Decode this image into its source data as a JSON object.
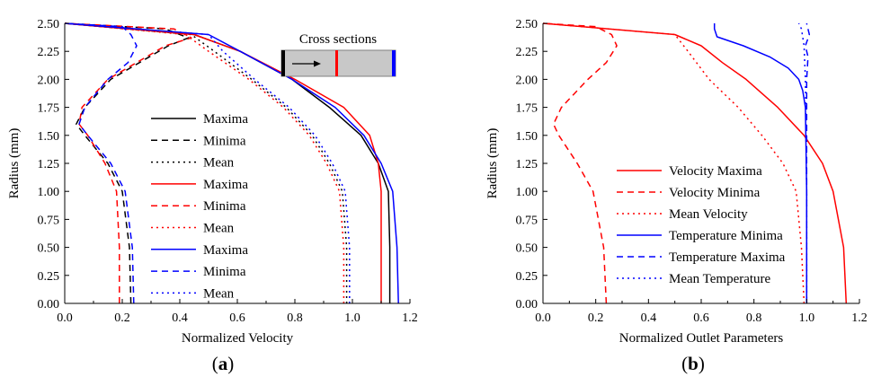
{
  "chart_data": [
    {
      "type": "line",
      "panel_label": "(a)",
      "xlabel": "Normalized Velocity",
      "ylabel": "Radius (mm)",
      "xlim": [
        0.0,
        1.2
      ],
      "ylim": [
        0.0,
        2.5
      ],
      "xticks": [
        "0.0",
        "0.2",
        "0.4",
        "0.6",
        "0.8",
        "1.0",
        "1.2"
      ],
      "yticks": [
        "0.00",
        "0.25",
        "0.50",
        "0.75",
        "1.00",
        "1.25",
        "1.50",
        "1.75",
        "2.00",
        "2.25",
        "2.50"
      ],
      "inset": {
        "title": "Cross sections",
        "section_colors": [
          "#000000",
          "#ff0000",
          "#0000ff"
        ]
      },
      "legend_position": "center",
      "series": [
        {
          "name": "Maxima",
          "color": "#000000",
          "dash": "solid",
          "y": [
            0,
            0.5,
            1.0,
            1.25,
            1.5,
            1.75,
            2.0,
            2.25,
            2.4,
            2.5
          ],
          "x": [
            1.13,
            1.13,
            1.125,
            1.09,
            1.03,
            0.92,
            0.79,
            0.61,
            0.45,
            0.0
          ]
        },
        {
          "name": "Minima",
          "color": "#000000",
          "dash": "dash",
          "y": [
            0,
            0.5,
            1.0,
            1.25,
            1.5,
            1.6,
            1.75,
            2.0,
            2.15,
            2.3,
            2.37,
            2.45,
            2.5
          ],
          "x": [
            0.23,
            0.225,
            0.2,
            0.15,
            0.07,
            0.04,
            0.07,
            0.16,
            0.26,
            0.36,
            0.43,
            0.35,
            0.0
          ]
        },
        {
          "name": "Mean",
          "color": "#000000",
          "dash": "dot",
          "y": [
            0,
            0.5,
            1.0,
            1.25,
            1.5,
            1.75,
            2.0,
            2.25,
            2.4,
            2.5
          ],
          "x": [
            0.98,
            0.98,
            0.965,
            0.92,
            0.86,
            0.77,
            0.65,
            0.52,
            0.44,
            0.0
          ]
        },
        {
          "name": "Maxima",
          "color": "#ff0000",
          "dash": "solid",
          "y": [
            0,
            0.5,
            1.0,
            1.25,
            1.5,
            1.75,
            2.0,
            2.25,
            2.4,
            2.5
          ],
          "x": [
            1.1,
            1.1,
            1.1,
            1.09,
            1.06,
            0.97,
            0.8,
            0.61,
            0.45,
            0.0
          ]
        },
        {
          "name": "Minima",
          "color": "#ff0000",
          "dash": "dash",
          "y": [
            0,
            0.5,
            1.0,
            1.25,
            1.5,
            1.6,
            1.75,
            2.0,
            2.15,
            2.3,
            2.37,
            2.45,
            2.5
          ],
          "x": [
            0.19,
            0.19,
            0.18,
            0.14,
            0.08,
            0.05,
            0.06,
            0.15,
            0.25,
            0.35,
            0.44,
            0.38,
            0.0
          ]
        },
        {
          "name": "Mean",
          "color": "#ff0000",
          "dash": "dot",
          "y": [
            0,
            0.5,
            1.0,
            1.25,
            1.5,
            1.75,
            2.0,
            2.25,
            2.4,
            2.5
          ],
          "x": [
            0.97,
            0.97,
            0.955,
            0.91,
            0.85,
            0.76,
            0.64,
            0.5,
            0.42,
            0.0
          ]
        },
        {
          "name": "Maxima",
          "color": "#0000ff",
          "dash": "solid",
          "y": [
            0,
            0.5,
            1.0,
            1.25,
            1.5,
            1.75,
            2.0,
            2.25,
            2.4,
            2.5
          ],
          "x": [
            1.16,
            1.155,
            1.14,
            1.1,
            1.04,
            0.94,
            0.79,
            0.61,
            0.5,
            0.0
          ]
        },
        {
          "name": "Minima",
          "color": "#0000ff",
          "dash": "dash",
          "y": [
            0,
            0.5,
            1.0,
            1.25,
            1.5,
            1.6,
            1.75,
            2.0,
            2.15,
            2.3,
            2.4,
            2.47,
            2.5
          ],
          "x": [
            0.24,
            0.235,
            0.21,
            0.16,
            0.08,
            0.05,
            0.07,
            0.15,
            0.22,
            0.25,
            0.23,
            0.2,
            0.0
          ]
        },
        {
          "name": "Mean",
          "color": "#0000ff",
          "dash": "dot",
          "y": [
            0,
            0.5,
            1.0,
            1.25,
            1.5,
            1.75,
            2.0,
            2.25,
            2.4,
            2.5
          ],
          "x": [
            0.99,
            0.99,
            0.975,
            0.93,
            0.87,
            0.78,
            0.66,
            0.55,
            0.5,
            0.0
          ]
        }
      ]
    },
    {
      "type": "line",
      "panel_label": "(b)",
      "xlabel": "Normalized Outlet Parameters",
      "ylabel": "Radius (mm)",
      "xlim": [
        0.0,
        1.2
      ],
      "ylim": [
        0.0,
        2.5
      ],
      "xticks": [
        "0.0",
        "0.2",
        "0.4",
        "0.6",
        "0.8",
        "1.0",
        "1.2"
      ],
      "yticks": [
        "0.00",
        "0.25",
        "0.50",
        "0.75",
        "1.00",
        "1.25",
        "1.50",
        "1.75",
        "2.00",
        "2.25",
        "2.50"
      ],
      "legend_position": "bottom-center",
      "series": [
        {
          "name": "Velocity Maxima",
          "color": "#ff0000",
          "dash": "solid",
          "y": [
            0,
            0.5,
            1.0,
            1.25,
            1.5,
            1.75,
            2.0,
            2.15,
            2.3,
            2.4,
            2.5
          ],
          "x": [
            1.15,
            1.14,
            1.1,
            1.06,
            0.99,
            0.89,
            0.77,
            0.68,
            0.6,
            0.5,
            0.0
          ]
        },
        {
          "name": "Velocity Minima",
          "color": "#ff0000",
          "dash": "dash",
          "y": [
            0,
            0.5,
            1.0,
            1.25,
            1.5,
            1.6,
            1.75,
            2.0,
            2.15,
            2.3,
            2.4,
            2.47,
            2.5
          ],
          "x": [
            0.24,
            0.23,
            0.19,
            0.13,
            0.06,
            0.04,
            0.07,
            0.17,
            0.24,
            0.28,
            0.26,
            0.2,
            0.0
          ]
        },
        {
          "name": "Mean Velocity",
          "color": "#ff0000",
          "dash": "dot",
          "y": [
            0,
            0.5,
            1.0,
            1.25,
            1.5,
            1.75,
            2.0,
            2.25,
            2.4,
            2.5
          ],
          "x": [
            0.99,
            0.98,
            0.96,
            0.91,
            0.83,
            0.74,
            0.63,
            0.55,
            0.5,
            0.0
          ]
        },
        {
          "name": "Temperature Minima",
          "color": "#0000ff",
          "dash": "solid",
          "y": [
            0,
            1.0,
            1.75,
            1.9,
            2.0,
            2.1,
            2.2,
            2.3,
            2.38,
            2.45,
            2.5
          ],
          "x": [
            1.0,
            1.0,
            0.995,
            0.985,
            0.97,
            0.93,
            0.86,
            0.76,
            0.66,
            0.65,
            0.65
          ]
        },
        {
          "name": "Temperature Maxima",
          "color": "#0000ff",
          "dash": "dash",
          "y": [
            0,
            1.0,
            2.0,
            2.2,
            2.3,
            2.4,
            2.5
          ],
          "x": [
            1.0,
            1.0,
            1.0,
            1.005,
            0.995,
            1.01,
            1.0
          ]
        },
        {
          "name": "Mean Temperature",
          "color": "#0000ff",
          "dash": "dot",
          "y": [
            0,
            1.0,
            2.0,
            2.3,
            2.45,
            2.5
          ],
          "x": [
            1.0,
            1.0,
            0.995,
            0.99,
            0.98,
            0.97
          ]
        }
      ]
    }
  ]
}
